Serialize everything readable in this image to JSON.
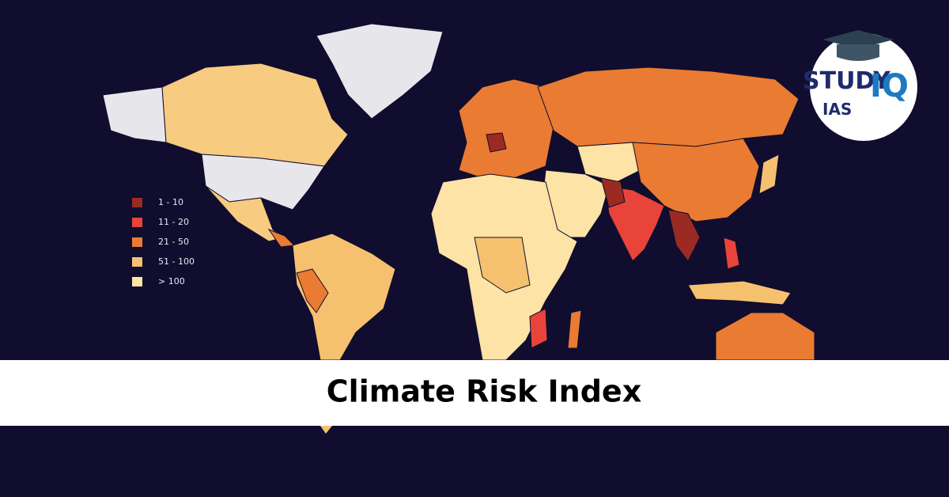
{
  "title": "Climate Risk Index",
  "legend": [
    {
      "label": "1 - 10",
      "color": "#9b2b22"
    },
    {
      "label": "11 - 20",
      "color": "#e8443a"
    },
    {
      "label": "21 - 50",
      "color": "#ea7b32"
    },
    {
      "label": "51 - 100",
      "color": "#f6c16f"
    },
    {
      "label": "> 100",
      "color": "#fde3a5"
    }
  ],
  "logo": {
    "study": "STUDY",
    "iq": "IQ",
    "ias": "IAS"
  }
}
